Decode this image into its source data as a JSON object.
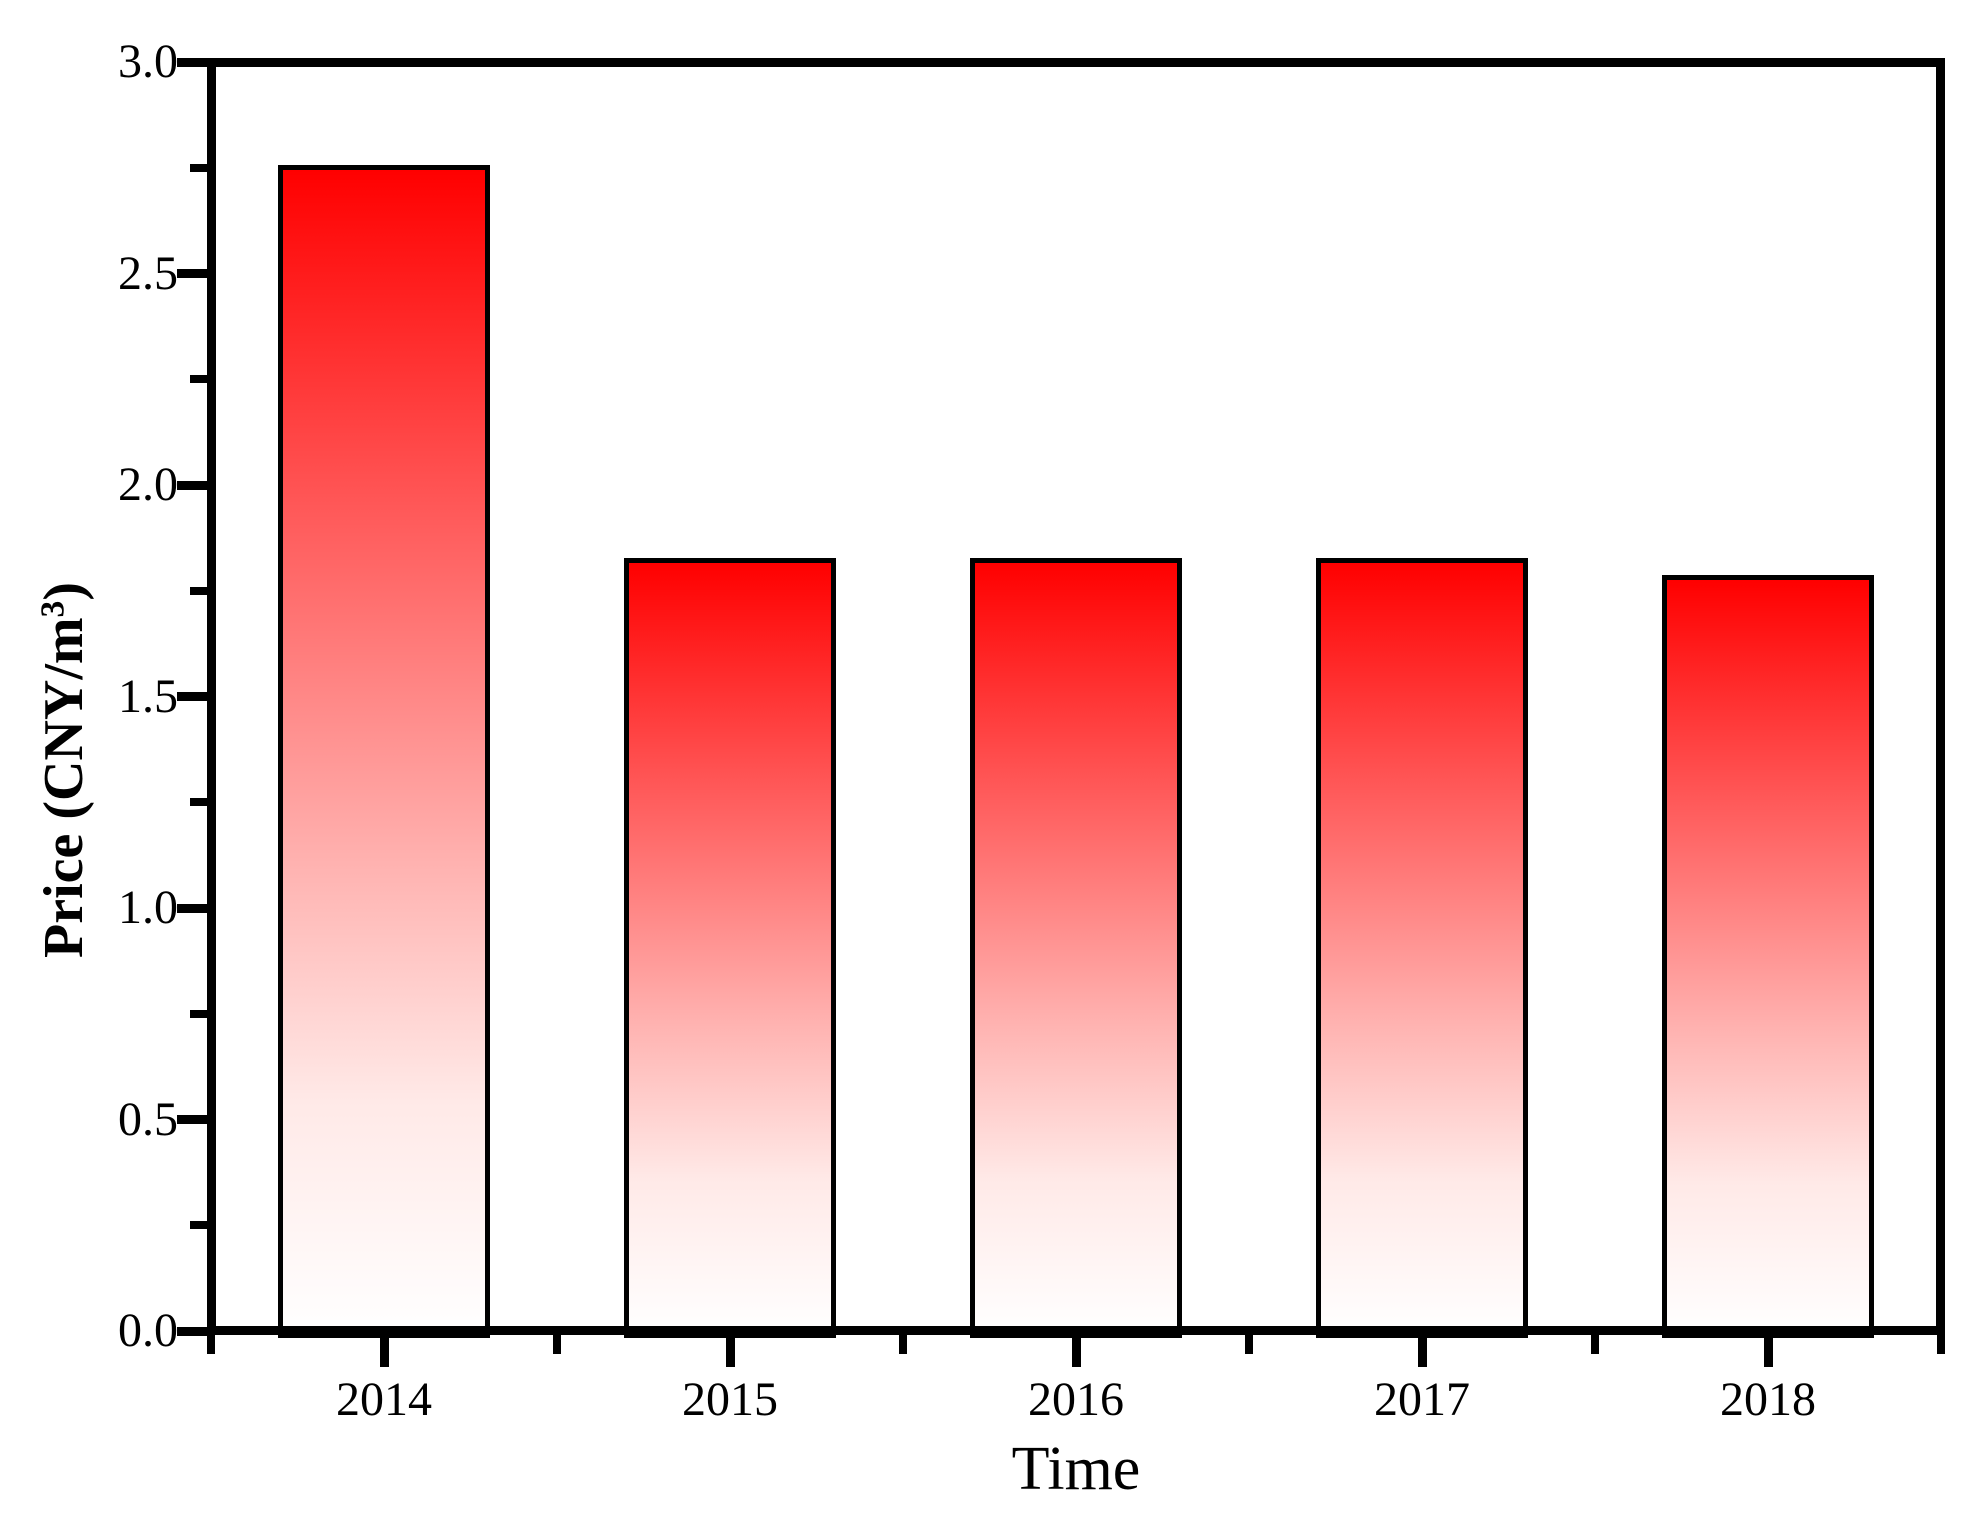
{
  "chart_data": {
    "type": "bar",
    "title": "",
    "categories": [
      "2014",
      "2015",
      "2016",
      "2017",
      "2018"
    ],
    "values": [
      2.75,
      1.82,
      1.82,
      1.82,
      1.78
    ],
    "xlabel": "Time",
    "ylabel": "Price (CNY/m³)",
    "ylabel_parts": {
      "prefix": "Price (CNY/m",
      "sup": "3",
      "suffix": ")"
    },
    "ylim": [
      0.0,
      3.0
    ],
    "y_major_tick_values": [
      0.0,
      0.5,
      1.0,
      1.5,
      2.0,
      2.5,
      3.0
    ],
    "y_major_tick_labels": [
      "0.0",
      "0.5",
      "1.0",
      "1.5",
      "2.0",
      "2.5",
      "3.0"
    ],
    "y_minor_tick_values": [
      0.25,
      0.75,
      1.25,
      1.75,
      2.25,
      2.75
    ],
    "x_minor_ticks_at_category_boundaries": true,
    "grid": false,
    "legend": null,
    "colors": {
      "axis": "#000000",
      "bar_outline": "#000000",
      "bar_gradient": [
        [
          "0%",
          "#ff0000"
        ],
        [
          "30%",
          "#ff5b5b"
        ],
        [
          "60%",
          "#ffb3b1"
        ],
        [
          "80%",
          "#ffe9e7"
        ],
        [
          "100%",
          "#ffffff"
        ]
      ],
      "background": "#ffffff"
    }
  }
}
